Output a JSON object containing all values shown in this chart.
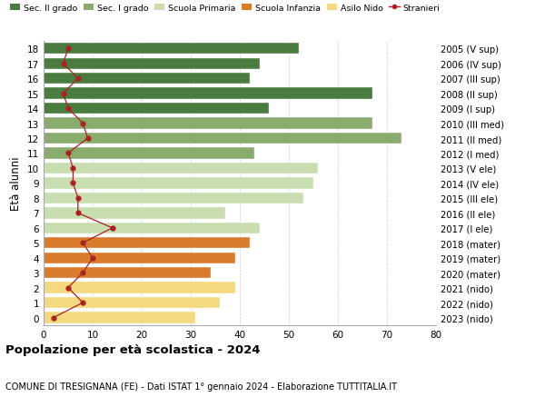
{
  "ages": [
    18,
    17,
    16,
    15,
    14,
    13,
    12,
    11,
    10,
    9,
    8,
    7,
    6,
    5,
    4,
    3,
    2,
    1,
    0
  ],
  "anni_nascita": [
    "2005 (V sup)",
    "2006 (IV sup)",
    "2007 (III sup)",
    "2008 (II sup)",
    "2009 (I sup)",
    "2010 (III med)",
    "2011 (II med)",
    "2012 (I med)",
    "2013 (V ele)",
    "2014 (IV ele)",
    "2015 (III ele)",
    "2016 (II ele)",
    "2017 (I ele)",
    "2018 (mater)",
    "2019 (mater)",
    "2020 (mater)",
    "2021 (nido)",
    "2022 (nido)",
    "2023 (nido)"
  ],
  "bar_values": [
    52,
    44,
    42,
    67,
    46,
    67,
    73,
    43,
    56,
    55,
    53,
    37,
    44,
    42,
    39,
    34,
    39,
    36,
    31
  ],
  "bar_colors": [
    "#4a7c3f",
    "#4a7c3f",
    "#4a7c3f",
    "#4a7c3f",
    "#4a7c3f",
    "#8aab6e",
    "#8aab6e",
    "#8aab6e",
    "#c8ddb0",
    "#c8ddb0",
    "#c8ddb0",
    "#c8ddb0",
    "#c8ddb0",
    "#d97b2b",
    "#d97b2b",
    "#d97b2b",
    "#f5d97e",
    "#f5d97e",
    "#f5d97e"
  ],
  "stranieri_values": [
    5,
    4,
    7,
    4,
    5,
    8,
    9,
    5,
    6,
    6,
    7,
    7,
    14,
    8,
    10,
    8,
    5,
    8,
    2
  ],
  "legend_labels": [
    "Sec. II grado",
    "Sec. I grado",
    "Scuola Primaria",
    "Scuola Infanzia",
    "Asilo Nido",
    "Stranieri"
  ],
  "legend_colors": [
    "#4a7c3f",
    "#8aab6e",
    "#c8ddb0",
    "#d97b2b",
    "#f5d97e",
    "#aa2222"
  ],
  "ylabel_left": "Età alunni",
  "title_bold": "Popolazione per età scolastica - 2024",
  "subtitle": "COMUNE DI TRESIGNANA (FE) - Dati ISTAT 1° gennaio 2024 - Elaborazione TUTTITALIA.IT",
  "xlim": [
    0,
    80
  ],
  "background_color": "#ffffff",
  "grid_color": "#cccccc",
  "stranieri_line_color": "#aa2222",
  "stranieri_marker_color": "#aa2222"
}
